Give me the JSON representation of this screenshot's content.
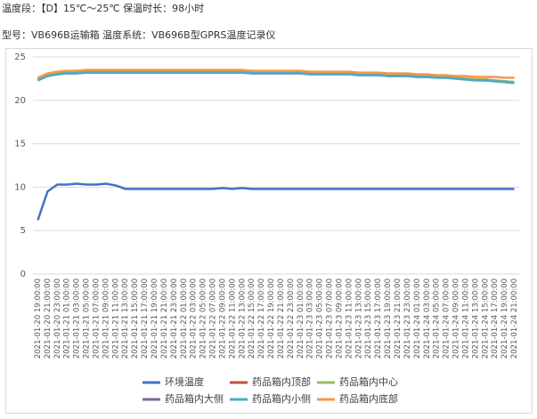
{
  "header": {
    "line1": "温度段：【D】15℃～25℃  保温时长：98小时",
    "line2": "型号：VB696B运输箱      温度系统：VB696B型GPRS温度记录仪"
  },
  "chart_data": {
    "type": "line",
    "categories": [
      "2021-01-20 19:00:00",
      "2021-01-20 21:00:00",
      "2021-01-20 23:00:00",
      "2021-01-21 01:00:00",
      "2021-01-21 03:00:00",
      "2021-01-21 05:00:00",
      "2021-01-21 07:00:00",
      "2021-01-21 09:00:00",
      "2021-01-21 11:00:00",
      "2021-01-21 13:00:00",
      "2021-01-21 15:00:00",
      "2021-01-21 17:00:00",
      "2021-01-21 19:00:00",
      "2021-01-21 21:00:00",
      "2021-01-21 23:00:00",
      "2021-01-22 01:00:00",
      "2021-01-22 03:00:00",
      "2021-01-22 05:00:00",
      "2021-01-22 07:00:00",
      "2021-01-22 09:00:00",
      "2021-01-22 11:00:00",
      "2021-01-22 13:00:00",
      "2021-01-22 15:00:00",
      "2021-01-22 17:00:00",
      "2021-01-22 19:00:00",
      "2021-01-22 21:00:00",
      "2021-01-22 23:00:00",
      "2021-01-23 01:00:00",
      "2021-01-23 03:00:00",
      "2021-01-23 05:00:00",
      "2021-01-23 07:00:00",
      "2021-01-23 09:00:00",
      "2021-01-23 11:00:00",
      "2021-01-23 13:00:00",
      "2021-01-23 15:00:00",
      "2021-01-23 17:00:00",
      "2021-01-23 19:00:00",
      "2021-01-23 21:00:00",
      "2021-01-23 23:00:00",
      "2021-01-24 01:00:00",
      "2021-01-24 03:00:00",
      "2021-01-24 05:00:00",
      "2021-01-24 07:00:00",
      "2021-01-24 09:00:00",
      "2021-01-24 11:00:00",
      "2021-01-24 13:00:00",
      "2021-01-24 15:00:00",
      "2021-01-24 17:00:00",
      "2021-01-24 19:00:00",
      "2021-01-24 21:00:00"
    ],
    "series": [
      {
        "name": "环境温度",
        "color": "#4472c4",
        "values": [
          6.2,
          9.5,
          10.3,
          10.3,
          10.4,
          10.3,
          10.3,
          10.4,
          10.2,
          9.8,
          9.8,
          9.8,
          9.8,
          9.8,
          9.8,
          9.8,
          9.8,
          9.8,
          9.8,
          9.9,
          9.8,
          9.9,
          9.8,
          9.8,
          9.8,
          9.8,
          9.8,
          9.8,
          9.8,
          9.8,
          9.8,
          9.8,
          9.8,
          9.8,
          9.8,
          9.8,
          9.8,
          9.8,
          9.8,
          9.8,
          9.8,
          9.8,
          9.8,
          9.8,
          9.8,
          9.8,
          9.8,
          9.8,
          9.8,
          9.8
        ]
      },
      {
        "name": "药品箱内顶部",
        "color": "#c0504d",
        "values": [
          22.4,
          22.9,
          23.1,
          23.2,
          23.2,
          23.3,
          23.3,
          23.3,
          23.3,
          23.3,
          23.3,
          23.3,
          23.3,
          23.3,
          23.3,
          23.3,
          23.3,
          23.3,
          23.3,
          23.3,
          23.3,
          23.3,
          23.2,
          23.2,
          23.2,
          23.2,
          23.2,
          23.2,
          23.1,
          23.1,
          23.1,
          23.1,
          23.1,
          23.0,
          23.0,
          23.0,
          22.9,
          22.9,
          22.9,
          22.8,
          22.8,
          22.7,
          22.7,
          22.6,
          22.5,
          22.4,
          22.4,
          22.3,
          22.2,
          22.1
        ]
      },
      {
        "name": "药品箱内中心",
        "color": "#9bbb59",
        "values": [
          22.4,
          22.9,
          23.1,
          23.2,
          23.2,
          23.3,
          23.3,
          23.3,
          23.3,
          23.3,
          23.3,
          23.3,
          23.3,
          23.3,
          23.3,
          23.3,
          23.3,
          23.3,
          23.3,
          23.3,
          23.3,
          23.3,
          23.2,
          23.2,
          23.2,
          23.2,
          23.2,
          23.2,
          23.1,
          23.1,
          23.1,
          23.1,
          23.1,
          23.0,
          23.0,
          23.0,
          22.9,
          22.9,
          22.9,
          22.8,
          22.8,
          22.7,
          22.7,
          22.6,
          22.5,
          22.4,
          22.4,
          22.3,
          22.2,
          22.1
        ]
      },
      {
        "name": "药品箱内大侧",
        "color": "#8064a2",
        "values": [
          22.3,
          22.8,
          23.0,
          23.1,
          23.1,
          23.2,
          23.2,
          23.2,
          23.2,
          23.2,
          23.2,
          23.2,
          23.2,
          23.2,
          23.2,
          23.2,
          23.2,
          23.2,
          23.2,
          23.2,
          23.2,
          23.2,
          23.1,
          23.1,
          23.1,
          23.1,
          23.1,
          23.1,
          23.0,
          23.0,
          23.0,
          23.0,
          23.0,
          22.9,
          22.9,
          22.9,
          22.8,
          22.8,
          22.8,
          22.7,
          22.7,
          22.6,
          22.6,
          22.5,
          22.4,
          22.3,
          22.3,
          22.2,
          22.1,
          22.0
        ]
      },
      {
        "name": "药品箱内小侧",
        "color": "#4bacc6",
        "values": [
          22.3,
          22.8,
          23.0,
          23.1,
          23.1,
          23.2,
          23.2,
          23.2,
          23.2,
          23.2,
          23.2,
          23.2,
          23.2,
          23.2,
          23.2,
          23.2,
          23.2,
          23.2,
          23.2,
          23.2,
          23.2,
          23.2,
          23.1,
          23.1,
          23.1,
          23.1,
          23.1,
          23.1,
          23.0,
          23.0,
          23.0,
          23.0,
          23.0,
          22.9,
          22.9,
          22.9,
          22.8,
          22.8,
          22.8,
          22.7,
          22.7,
          22.6,
          22.6,
          22.5,
          22.4,
          22.3,
          22.3,
          22.2,
          22.1,
          22.0
        ]
      },
      {
        "name": "药品箱内底部",
        "color": "#f79646",
        "values": [
          22.6,
          23.1,
          23.3,
          23.4,
          23.4,
          23.5,
          23.5,
          23.5,
          23.5,
          23.5,
          23.5,
          23.5,
          23.5,
          23.5,
          23.5,
          23.5,
          23.5,
          23.5,
          23.5,
          23.5,
          23.5,
          23.5,
          23.4,
          23.4,
          23.4,
          23.4,
          23.4,
          23.4,
          23.3,
          23.3,
          23.3,
          23.3,
          23.3,
          23.2,
          23.2,
          23.2,
          23.1,
          23.1,
          23.1,
          23.0,
          23.0,
          22.9,
          22.9,
          22.8,
          22.8,
          22.7,
          22.7,
          22.7,
          22.6,
          22.6
        ]
      }
    ],
    "ylim": [
      0,
      25
    ],
    "yticks": [
      0,
      5,
      10,
      15,
      20,
      25
    ],
    "grid": true
  }
}
